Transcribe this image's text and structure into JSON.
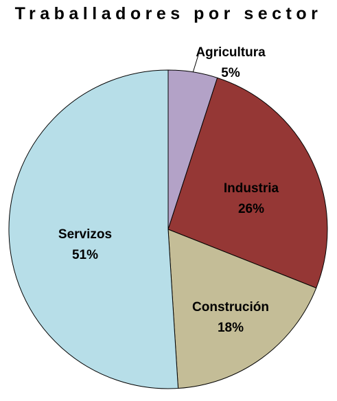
{
  "chart_data": {
    "type": "pie",
    "title": "Traballadores por sector",
    "slices": [
      {
        "label": "Agricultura",
        "value": 5,
        "display": "5%",
        "color": "#b3a2c7"
      },
      {
        "label": "Industria",
        "value": 26,
        "display": "26%",
        "color": "#953735"
      },
      {
        "label": "Construción",
        "value": 18,
        "display": "18%",
        "color": "#c4bd97"
      },
      {
        "label": "Servizos",
        "value": 51,
        "display": "51%",
        "color": "#b7dee8"
      }
    ],
    "start_angle_deg": 0,
    "direction": "clockwise",
    "outline_color": "#000000"
  }
}
